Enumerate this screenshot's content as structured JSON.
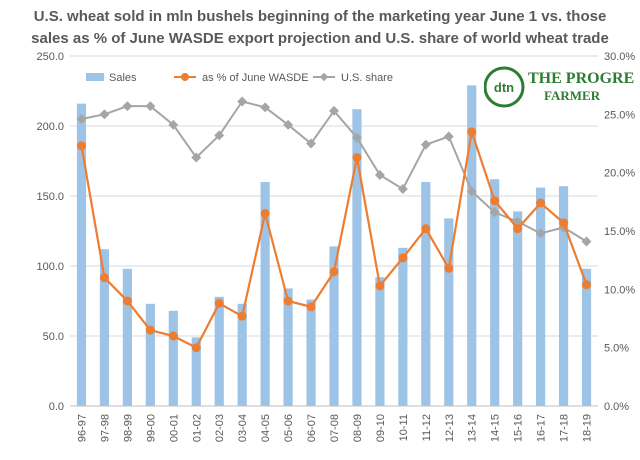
{
  "title": {
    "line1": "U.S. wheat sold in mln bushels beginning of the marketing year June 1 vs. those",
    "line2": "sales as % of June WASDE export projection and U.S. share of world wheat trade"
  },
  "logo": {
    "brand_short": "dtn",
    "brand_top": "THE PROGRESSIVE",
    "brand_bottom": "FARMER"
  },
  "colors": {
    "sales": "#9dc3e6",
    "wasde": "#ed7d31",
    "share": "#a5a5a5",
    "grid": "#d9d9d9",
    "axis_text": "#595959",
    "logo": "#2e7d32"
  },
  "chart_data": {
    "type": "bar",
    "categories": [
      "96-97",
      "97-98",
      "98-99",
      "99-00",
      "00-01",
      "01-02",
      "02-03",
      "03-04",
      "04-05",
      "05-06",
      "06-07",
      "07-08",
      "08-09",
      "09-10",
      "10-11",
      "11-12",
      "12-13",
      "13-14",
      "14-15",
      "15-16",
      "16-17",
      "17-18",
      "18-19"
    ],
    "series": [
      {
        "name": "Sales",
        "type": "bar",
        "axis": "left",
        "color": "#9dc3e6",
        "values": [
          216,
          112,
          98,
          73,
          68,
          49,
          78,
          73,
          160,
          84,
          76,
          114,
          212,
          92,
          113,
          160,
          134,
          229,
          162,
          139,
          156,
          157,
          98
        ]
      },
      {
        "name": "as % of June WASDE",
        "type": "line",
        "axis": "right",
        "color": "#ed7d31",
        "values": [
          22.3,
          11.0,
          9.0,
          6.5,
          6.0,
          5.0,
          8.8,
          7.7,
          16.5,
          9.0,
          8.5,
          11.5,
          21.3,
          10.3,
          12.7,
          15.2,
          11.8,
          23.5,
          17.6,
          15.2,
          17.4,
          15.7,
          10.4
        ]
      },
      {
        "name": "U.S. share",
        "type": "line",
        "axis": "right",
        "color": "#a5a5a5",
        "values": [
          24.6,
          25.0,
          25.7,
          25.7,
          24.1,
          21.3,
          23.2,
          26.1,
          25.6,
          24.1,
          22.5,
          25.3,
          23.0,
          19.8,
          18.6,
          22.4,
          23.1,
          18.4,
          16.6,
          15.8,
          14.8,
          15.3,
          14.1
        ]
      }
    ],
    "y_left": {
      "min": 0,
      "max": 250,
      "ticks": [
        "0.0",
        "50.0",
        "100.0",
        "150.0",
        "200.0",
        "250.0"
      ]
    },
    "y_right": {
      "min": 0,
      "max": 30,
      "ticks": [
        "0.0%",
        "5.0%",
        "10.0%",
        "15.0%",
        "20.0%",
        "25.0%",
        "30.0%"
      ]
    },
    "grid": true,
    "legend_position": "top-left"
  }
}
